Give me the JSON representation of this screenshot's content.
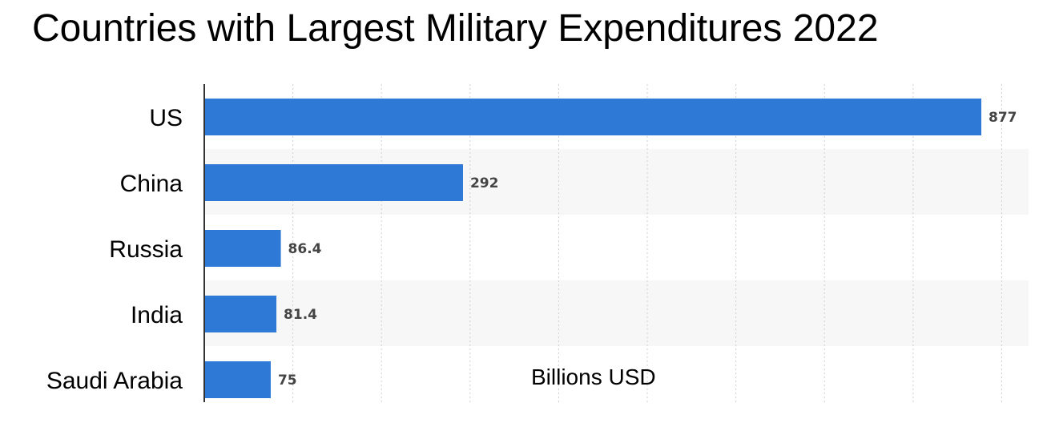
{
  "chart_data": {
    "type": "bar",
    "orientation": "horizontal",
    "title": "Countries with Largest Military Expenditures 2022",
    "categories": [
      "US",
      "China",
      "Russia",
      "India",
      "Saudi Arabia"
    ],
    "values": [
      877,
      292,
      86.4,
      81.4,
      75
    ],
    "value_labels": [
      "877",
      "292",
      "86.4",
      "81.4",
      "75"
    ],
    "xlabel": "Billions USD",
    "ylabel": "",
    "xlim": [
      0,
      900
    ],
    "grid": true,
    "colors": {
      "bar": "#2e78d6",
      "band": "#f7f7f7",
      "grid": "#d0d0d0",
      "axis": "#333333"
    }
  }
}
